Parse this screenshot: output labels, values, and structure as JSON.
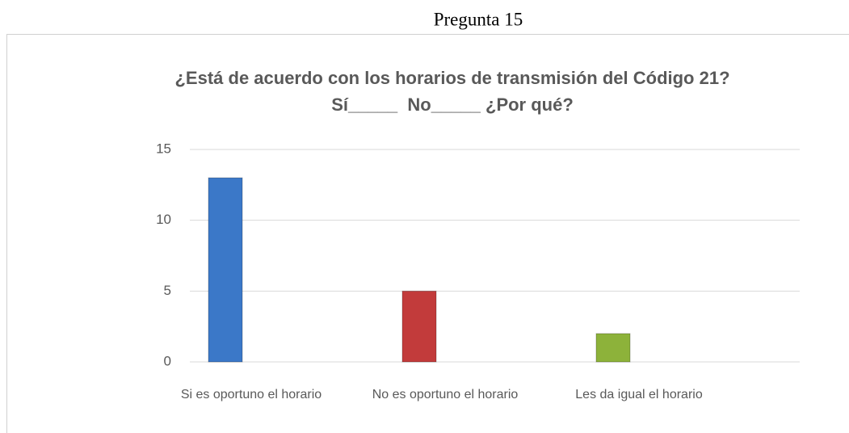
{
  "header": "Pregunta 15",
  "chart_data": {
    "type": "bar",
    "title": "¿Está de acuerdo con los horarios de transmisión del Código 21?",
    "subtitle": "Sí_____  No_____ ¿Por qué?",
    "categories": [
      "Si es oportuno el horario",
      "No es oportuno el horario",
      "Les da igual el horario"
    ],
    "values": [
      13,
      5,
      2
    ],
    "colors": [
      "#3b78c8",
      "#c23b3b",
      "#8db23a"
    ],
    "ylim": [
      0,
      15
    ],
    "yticks": [
      0,
      5,
      10,
      15
    ],
    "grid": true
  }
}
